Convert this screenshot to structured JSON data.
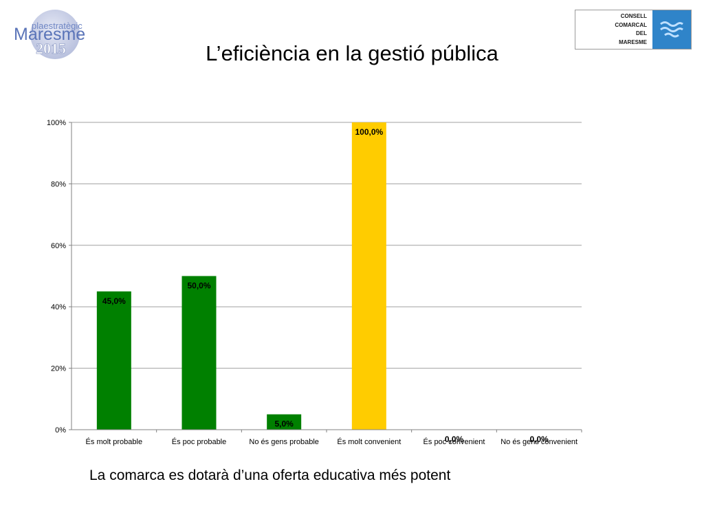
{
  "logo_left": {
    "line1": "plaestratègic",
    "line2": "Maresme",
    "line3": "2015"
  },
  "logo_right": {
    "lines": [
      "CONSELL",
      "COMARCAL",
      "DEL",
      "MARESME"
    ]
  },
  "page": {
    "title": "L’eficiència en la gestió pública",
    "subtitle": "La comarca es dotarà d’una oferta educativa més potent"
  },
  "colors": {
    "green": "#008000",
    "yellow": "#ffcc00",
    "grid": "#a0a0a0",
    "axis": "#808080"
  },
  "chart_data": {
    "type": "bar",
    "categories": [
      "És molt probable",
      "És poc probable",
      "No és gens probable",
      "És molt convenient",
      "És poc convenient",
      "No és gens convenient"
    ],
    "values": [
      45.0,
      50.0,
      5.0,
      100.0,
      0.0,
      0.0
    ],
    "data_labels": [
      "45,0%",
      "50,0%",
      "5,0%",
      "100,0%",
      "0,0%",
      "0,0%"
    ],
    "bar_colors": [
      "#008000",
      "#008000",
      "#008000",
      "#ffcc00",
      "#008000",
      "#008000"
    ],
    "ylim": [
      0,
      100
    ],
    "yticks": [
      0,
      20,
      40,
      60,
      80,
      100
    ],
    "ytick_labels": [
      "0%",
      "20%",
      "40%",
      "60%",
      "80%",
      "100%"
    ],
    "grid": true,
    "legend": "none"
  }
}
